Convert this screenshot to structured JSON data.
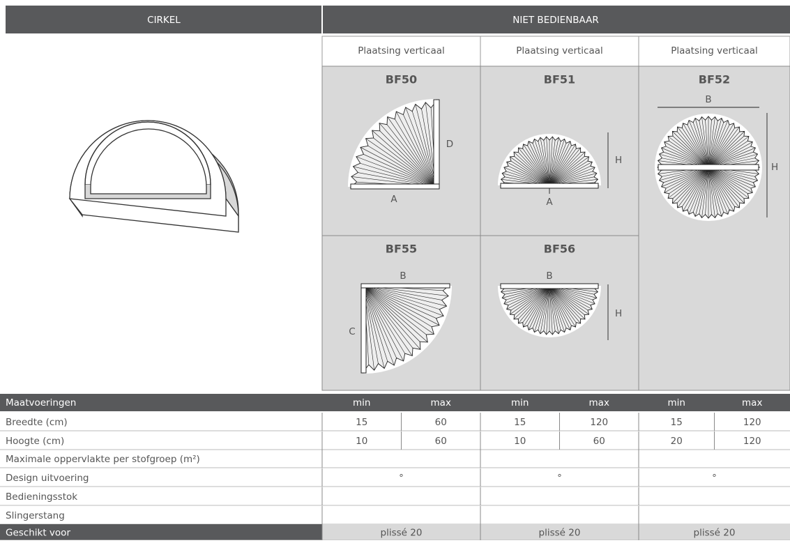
{
  "header": {
    "left": "CIRKEL",
    "right": "NIET BEDIENBAAR"
  },
  "placement": [
    "Plaatsing verticaal",
    "Plaatsing verticaal",
    "Plaatsing verticaal"
  ],
  "models": [
    {
      "code": "BF50",
      "labels": [
        "D",
        "A"
      ]
    },
    {
      "code": "BF51",
      "labels": [
        "H",
        "A"
      ]
    },
    {
      "code": "BF52",
      "labels": [
        "B",
        "H"
      ]
    },
    {
      "code": "BF55",
      "labels": [
        "B",
        "C"
      ]
    },
    {
      "code": "BF56",
      "labels": [
        "B",
        "H"
      ]
    }
  ],
  "table": {
    "header": {
      "label": "Maatvoeringen",
      "cols": [
        "min",
        "max",
        "min",
        "max",
        "min",
        "max"
      ]
    },
    "rows": [
      {
        "label": "Breedte (cm)",
        "cells": [
          15,
          60,
          15,
          120,
          15,
          120
        ]
      },
      {
        "label": "Hoogte (cm)",
        "cells": [
          10,
          60,
          10,
          60,
          20,
          120
        ]
      },
      {
        "label": "Maximale oppervlakte per stofgroep (m²)"
      },
      {
        "label": "Design uitvoering",
        "cells": [
          "°",
          "°",
          "°"
        ]
      },
      {
        "label": "Bedieningsstok"
      },
      {
        "label": "Slingerstang"
      },
      {
        "label": "Geschikt voor",
        "cells": [
          "plissé 20",
          "plissé 20",
          "plissé 20"
        ]
      }
    ]
  }
}
